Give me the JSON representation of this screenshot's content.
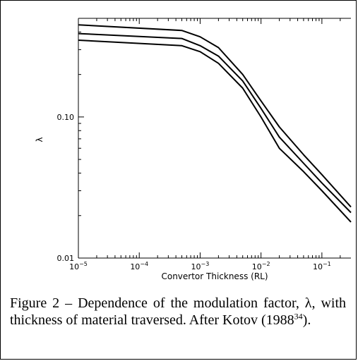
{
  "chart_data": {
    "type": "line",
    "x_scale": "log",
    "y_scale": "log",
    "xlim": [
      1e-05,
      0.3
    ],
    "ylim": [
      0.01,
      0.5
    ],
    "xlabel": "Convertor Thickness (RL)",
    "ylabel": "λ",
    "x_tick_labels": [
      {
        "base": "10",
        "exp": "−5"
      },
      {
        "base": "10",
        "exp": "−4"
      },
      {
        "base": "10",
        "exp": "−3"
      },
      {
        "base": "10",
        "exp": "−2"
      },
      {
        "base": "10",
        "exp": "−1"
      }
    ],
    "x_tick_values": [
      1e-05,
      0.0001,
      0.001,
      0.01,
      0.1
    ],
    "y_tick_labels": [
      "0.01",
      "0.10"
    ],
    "y_tick_values": [
      0.01,
      0.1
    ],
    "grid": false,
    "series": [
      {
        "x": [
          1e-05,
          0.0005,
          0.001,
          0.002,
          0.005,
          0.01,
          0.02,
          0.05,
          0.1,
          0.3
        ],
        "y": [
          0.45,
          0.41,
          0.37,
          0.31,
          0.2,
          0.13,
          0.085,
          0.054,
          0.039,
          0.023
        ]
      },
      {
        "x": [
          1e-05,
          0.0005,
          0.001,
          0.002,
          0.005,
          0.01,
          0.02,
          0.05,
          0.1,
          0.3
        ],
        "y": [
          0.39,
          0.36,
          0.32,
          0.27,
          0.18,
          0.115,
          0.072,
          0.047,
          0.034,
          0.021
        ]
      },
      {
        "x": [
          1e-05,
          0.0005,
          0.001,
          0.002,
          0.005,
          0.01,
          0.02,
          0.05,
          0.1,
          0.3
        ],
        "y": [
          0.35,
          0.32,
          0.29,
          0.24,
          0.16,
          0.1,
          0.06,
          0.041,
          0.03,
          0.018
        ]
      }
    ]
  },
  "caption": {
    "text_before": "Figure 2 – Dependence of the modulation factor, λ, with thickness of material traversed. After Kotov (1988",
    "superscript": "34",
    "text_after": ")."
  }
}
